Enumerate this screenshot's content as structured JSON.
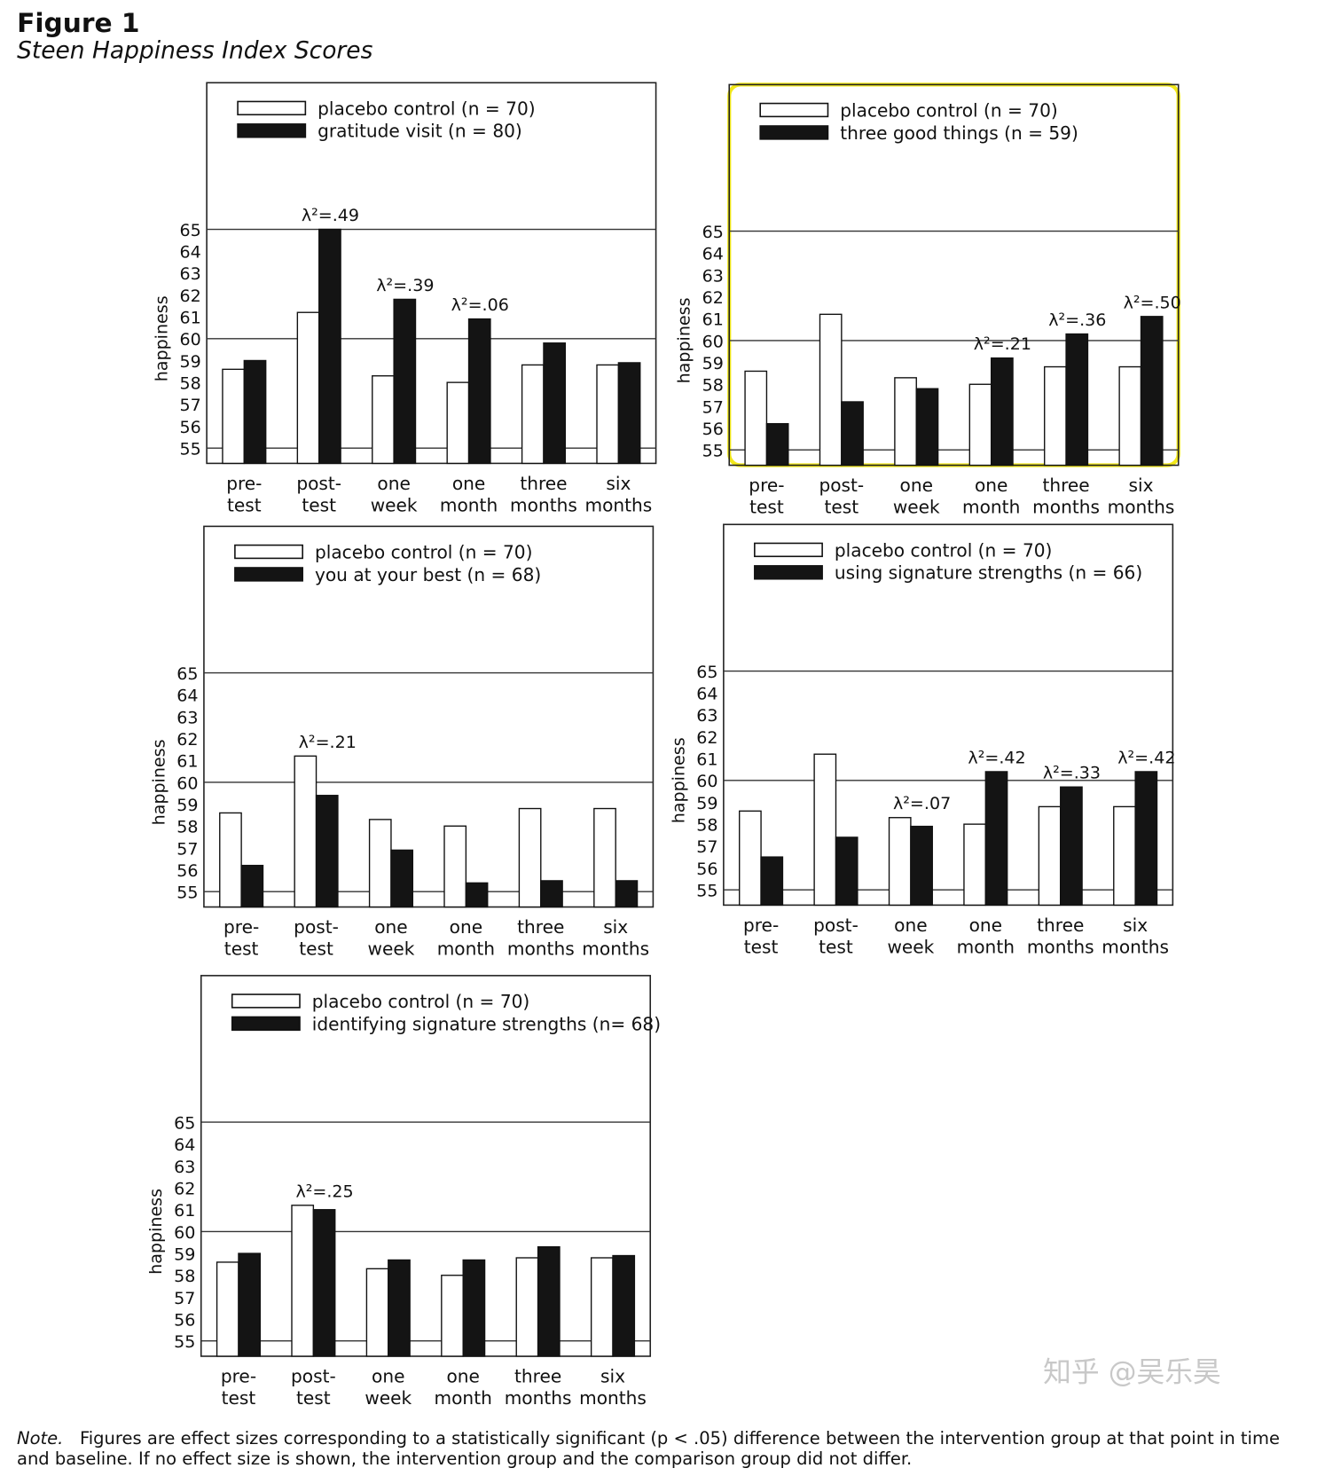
{
  "header": {
    "title": "Figure 1",
    "subtitle": "Steen Happiness Index Scores"
  },
  "chart_data": [
    {
      "type": "bar",
      "y_label": "happiness",
      "categories": [
        [
          "pre-",
          "test"
        ],
        [
          "post-",
          "test"
        ],
        [
          "one",
          "week"
        ],
        [
          "one",
          "month"
        ],
        [
          "three",
          "months"
        ],
        [
          "six",
          "months"
        ]
      ],
      "series": [
        {
          "name": "placebo control (n = 70)",
          "color": "#ffffff",
          "values": [
            58.6,
            61.2,
            58.3,
            58.0,
            58.8,
            58.8
          ]
        },
        {
          "name": "gratitude visit (n = 80)",
          "color": "#141414",
          "values": [
            59.0,
            65.0,
            61.8,
            60.9,
            59.8,
            58.9
          ]
        }
      ],
      "annotations": [
        null,
        "λ²=.49",
        "λ²=.39",
        "λ²=.06",
        null,
        null
      ],
      "ylim": [
        54.3,
        71.7
      ],
      "yticks": [
        55,
        56,
        57,
        58,
        59,
        60,
        61,
        62,
        63,
        64,
        65
      ],
      "gridlines": [
        55,
        60,
        65
      ]
    },
    {
      "type": "bar",
      "y_label": "happiness",
      "categories": [
        [
          "pre-",
          "test"
        ],
        [
          "post-",
          "test"
        ],
        [
          "one",
          "week"
        ],
        [
          "one",
          "month"
        ],
        [
          "three",
          "months"
        ],
        [
          "six",
          "months"
        ]
      ],
      "series": [
        {
          "name": "placebo control (n = 70)",
          "color": "#ffffff",
          "values": [
            58.6,
            61.2,
            58.3,
            58.0,
            58.8,
            58.8
          ]
        },
        {
          "name": "three good things (n = 59)",
          "color": "#141414",
          "values": [
            56.2,
            57.2,
            57.8,
            59.2,
            60.3,
            61.1
          ]
        }
      ],
      "annotations": [
        null,
        null,
        null,
        "λ²=.21",
        "λ²=.36",
        "λ²=.50"
      ],
      "ylim": [
        54.3,
        71.7
      ],
      "yticks": [
        55,
        56,
        57,
        58,
        59,
        60,
        61,
        62,
        63,
        64,
        65
      ],
      "gridlines": [
        55,
        60,
        65
      ]
    },
    {
      "type": "bar",
      "y_label": "happiness",
      "categories": [
        [
          "pre-",
          "test"
        ],
        [
          "post-",
          "test"
        ],
        [
          "one",
          "week"
        ],
        [
          "one",
          "month"
        ],
        [
          "three",
          "months"
        ],
        [
          "six",
          "months"
        ]
      ],
      "series": [
        {
          "name": "placebo control (n = 70)",
          "color": "#ffffff",
          "values": [
            58.6,
            61.2,
            58.3,
            58.0,
            58.8,
            58.8
          ]
        },
        {
          "name": "you at your best (n = 68)",
          "color": "#141414",
          "values": [
            56.2,
            59.4,
            56.9,
            55.4,
            55.5,
            55.5
          ]
        }
      ],
      "annotations": [
        null,
        "λ²=.21",
        null,
        null,
        null,
        null
      ],
      "ylim": [
        54.3,
        71.7
      ],
      "yticks": [
        55,
        56,
        57,
        58,
        59,
        60,
        61,
        62,
        63,
        64,
        65
      ],
      "gridlines": [
        55,
        60,
        65
      ]
    },
    {
      "type": "bar",
      "y_label": "happiness",
      "categories": [
        [
          "pre-",
          "test"
        ],
        [
          "post-",
          "test"
        ],
        [
          "one",
          "week"
        ],
        [
          "one",
          "month"
        ],
        [
          "three",
          "months"
        ],
        [
          "six",
          "months"
        ]
      ],
      "series": [
        {
          "name": "placebo control (n = 70)",
          "color": "#ffffff",
          "values": [
            58.6,
            61.2,
            58.3,
            58.0,
            58.8,
            58.8
          ]
        },
        {
          "name": "using signature strengths (n = 66)",
          "color": "#141414",
          "values": [
            56.5,
            57.4,
            57.9,
            60.4,
            59.7,
            60.4
          ]
        }
      ],
      "annotations": [
        null,
        null,
        "λ²=.07",
        "λ²=.42",
        "λ²=.33",
        "λ²=.42"
      ],
      "ylim": [
        54.3,
        71.7
      ],
      "yticks": [
        55,
        56,
        57,
        58,
        59,
        60,
        61,
        62,
        63,
        64,
        65
      ],
      "gridlines": [
        55,
        60,
        65
      ]
    },
    {
      "type": "bar",
      "y_label": "happiness",
      "categories": [
        [
          "pre-",
          "test"
        ],
        [
          "post-",
          "test"
        ],
        [
          "one",
          "week"
        ],
        [
          "one",
          "month"
        ],
        [
          "three",
          "months"
        ],
        [
          "six",
          "months"
        ]
      ],
      "series": [
        {
          "name": "placebo control (n = 70)",
          "color": "#ffffff",
          "values": [
            58.6,
            61.2,
            58.3,
            58.0,
            58.8,
            58.8
          ]
        },
        {
          "name": "identifying signature strengths (n= 68)",
          "color": "#141414",
          "values": [
            59.0,
            61.0,
            58.7,
            58.7,
            59.3,
            58.9
          ]
        }
      ],
      "annotations": [
        null,
        "λ²=.25",
        null,
        null,
        null,
        null
      ],
      "ylim": [
        54.3,
        71.7
      ],
      "yticks": [
        55,
        56,
        57,
        58,
        59,
        60,
        61,
        62,
        63,
        64,
        65
      ],
      "gridlines": [
        55,
        60,
        65
      ]
    }
  ],
  "note": {
    "label": "Note.",
    "text": "Figures are effect sizes corresponding to a statistically significant (p < .05) difference between the intervention group at that point in time and baseline. If no effect size is shown, the intervention group and the comparison group did not differ."
  },
  "watermark": "知乎 @吴乐昊"
}
